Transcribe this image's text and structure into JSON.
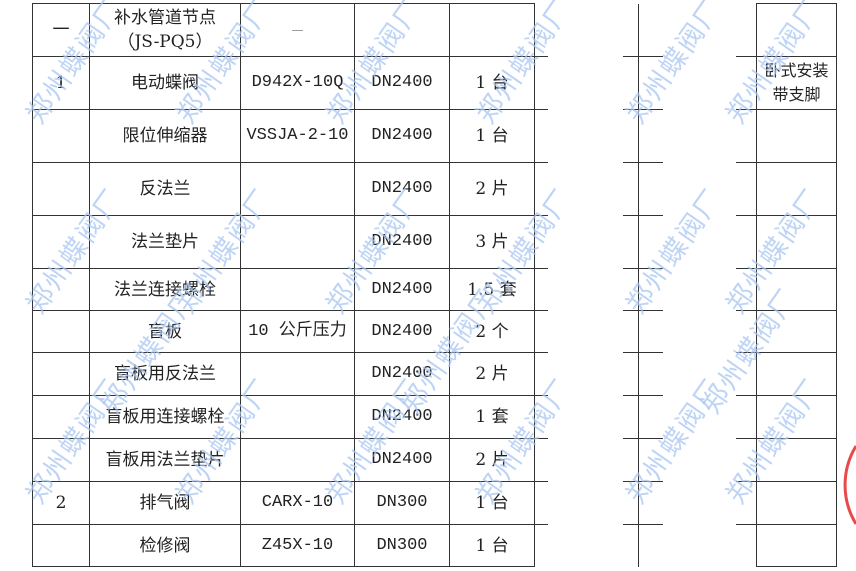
{
  "watermark": "郑州蝶阀厂",
  "rows": [
    {
      "no": "一",
      "name": "补水管道节点",
      "name2": "（JS-PQ5）",
      "model": "—",
      "size": "",
      "qty": "",
      "remark": ""
    },
    {
      "no": "1",
      "name": "电动蝶阀",
      "name2": "",
      "model": "D942X-10Q",
      "size": "DN2400",
      "qty": "1 台",
      "remark": "卧式安装带支脚"
    },
    {
      "no": "",
      "name": "限位伸缩器",
      "name2": "",
      "model": "VSSJA-2-10",
      "size": "DN2400",
      "qty": "1 台",
      "remark": ""
    },
    {
      "no": "",
      "name": "反法兰",
      "name2": "",
      "model": "",
      "size": "DN2400",
      "qty": "2 片",
      "remark": ""
    },
    {
      "no": "",
      "name": "法兰垫片",
      "name2": "",
      "model": "",
      "size": "DN2400",
      "qty": "3 片",
      "remark": ""
    },
    {
      "no": "",
      "name": "法兰连接螺栓",
      "name2": "",
      "model": "",
      "size": "DN2400",
      "qty": "1.5 套",
      "remark": ""
    },
    {
      "no": "",
      "name": "盲板",
      "name2": "",
      "model": "10 公斤压力",
      "size": "DN2400",
      "qty": "2 个",
      "remark": ""
    },
    {
      "no": "",
      "name": "盲板用反法兰",
      "name2": "",
      "model": "",
      "size": "DN2400",
      "qty": "2 片",
      "remark": ""
    },
    {
      "no": "",
      "name": "盲板用连接螺栓",
      "name2": "",
      "model": "",
      "size": "DN2400",
      "qty": "1 套",
      "remark": ""
    },
    {
      "no": "",
      "name": "盲板用法兰垫片",
      "name2": "",
      "model": "",
      "size": "DN2400",
      "qty": "2 片",
      "remark": ""
    },
    {
      "no": "2",
      "name": "排气阀",
      "name2": "",
      "model": "CARX-10",
      "size": "DN300",
      "qty": "1 台",
      "remark": ""
    },
    {
      "no": "",
      "name": "检修阀",
      "name2": "",
      "model": "Z45X-10",
      "size": "DN300",
      "qty": "1 台",
      "remark": ""
    }
  ],
  "colors": {
    "watermark": "#a9c6f2",
    "stamp": "#e84a4a",
    "lines": "#333333"
  }
}
